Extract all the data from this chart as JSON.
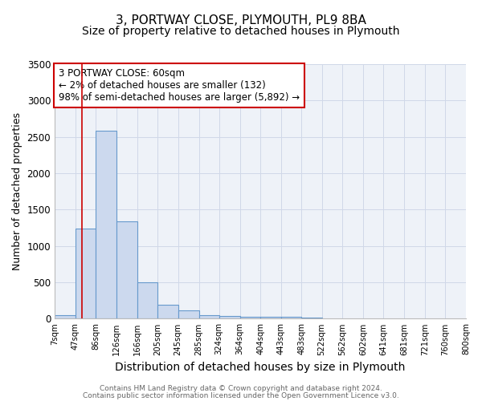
{
  "title1": "3, PORTWAY CLOSE, PLYMOUTH, PL9 8BA",
  "title2": "Size of property relative to detached houses in Plymouth",
  "xlabel": "Distribution of detached houses by size in Plymouth",
  "ylabel": "Number of detached properties",
  "bar_edges": [
    7,
    47,
    86,
    126,
    166,
    205,
    245,
    285,
    324,
    364,
    404,
    443,
    483,
    522,
    562,
    602,
    641,
    681,
    721,
    760,
    800
  ],
  "bar_heights": [
    50,
    1240,
    2580,
    1340,
    500,
    195,
    110,
    45,
    40,
    25,
    25,
    25,
    20,
    0,
    0,
    0,
    0,
    0,
    0,
    0
  ],
  "bar_color": "#ccd9ee",
  "bar_edge_color": "#6699cc",
  "bar_linewidth": 0.8,
  "vline_x": 60,
  "vline_color": "#cc0000",
  "vline_linewidth": 1.2,
  "annotation_text": "3 PORTWAY CLOSE: 60sqm\n← 2% of detached houses are smaller (132)\n98% of semi-detached houses are larger (5,892) →",
  "annotation_box_color": "#cc0000",
  "annotation_fontsize": 8.5,
  "ylim": [
    0,
    3500
  ],
  "xlim": [
    7,
    800
  ],
  "yticks": [
    0,
    500,
    1000,
    1500,
    2000,
    2500,
    3000,
    3500
  ],
  "xtick_labels": [
    "7sqm",
    "47sqm",
    "86sqm",
    "126sqm",
    "166sqm",
    "205sqm",
    "245sqm",
    "285sqm",
    "324sqm",
    "364sqm",
    "404sqm",
    "443sqm",
    "483sqm",
    "522sqm",
    "562sqm",
    "602sqm",
    "641sqm",
    "681sqm",
    "721sqm",
    "760sqm",
    "800sqm"
  ],
  "xtick_positions": [
    7,
    47,
    86,
    126,
    166,
    205,
    245,
    285,
    324,
    364,
    404,
    443,
    483,
    522,
    562,
    602,
    641,
    681,
    721,
    760,
    800
  ],
  "grid_color": "#d0d8e8",
  "background_color": "#eef2f8",
  "title1_fontsize": 11,
  "title2_fontsize": 10,
  "xlabel_fontsize": 10,
  "ylabel_fontsize": 9,
  "footnote1": "Contains HM Land Registry data © Crown copyright and database right 2024.",
  "footnote2": "Contains public sector information licensed under the Open Government Licence v3.0."
}
